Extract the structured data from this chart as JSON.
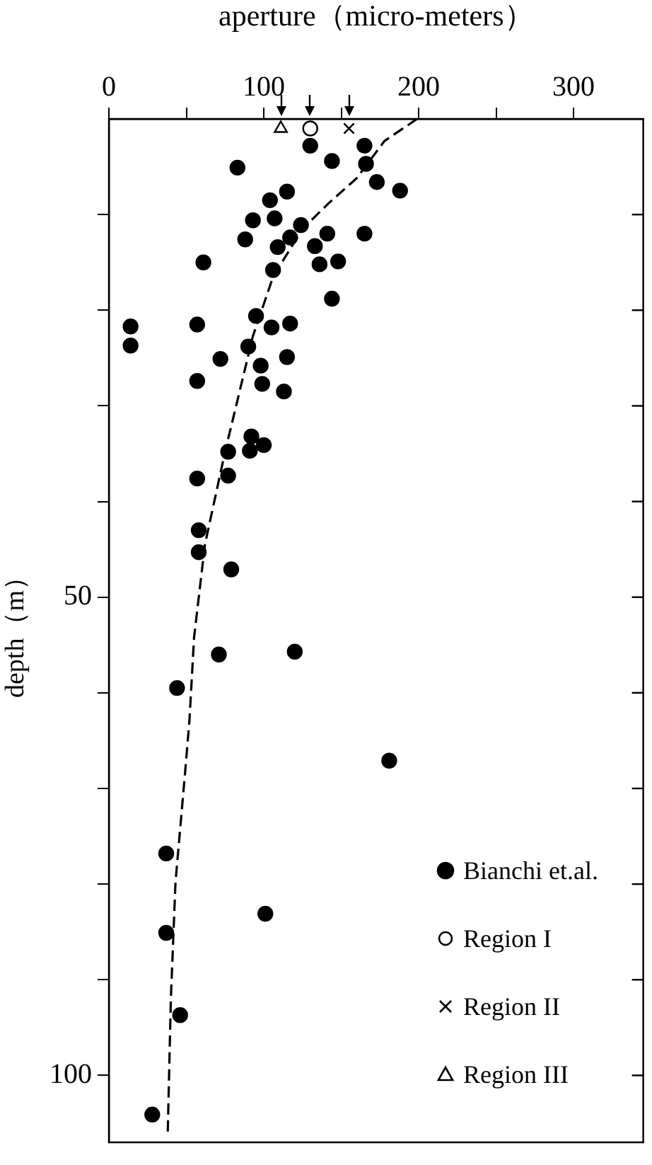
{
  "chart_data": {
    "type": "scatter",
    "xlabel": "aperture（micro-meters）",
    "ylabel": "depth（m）",
    "xlim": [
      0,
      345
    ],
    "ylim": [
      107,
      0
    ],
    "xticks": [
      0,
      {
        "value": 50,
        "label": null
      },
      100,
      {
        "value": 150,
        "label": null
      },
      200,
      {
        "value": 250,
        "label": null
      },
      300
    ],
    "yticks": [
      {
        "value": 10,
        "label": null
      },
      {
        "value": 20,
        "label": null
      },
      {
        "value": 30,
        "label": null
      },
      {
        "value": 40,
        "label": null
      },
      50,
      {
        "value": 60,
        "label": null
      },
      {
        "value": 70,
        "label": null
      },
      {
        "value": 80,
        "label": null
      },
      {
        "value": 90,
        "label": null
      },
      100
    ],
    "grid": false,
    "legend": "bottom right",
    "series": [
      {
        "name": "Bianchi et.al.",
        "marker": "circle",
        "color": "#000000",
        "x": [
          130,
          165,
          144,
          166,
          83,
          173,
          188,
          115,
          104,
          93,
          107,
          124,
          165,
          88,
          117,
          141,
          109,
          133,
          61,
          136,
          148,
          106,
          144,
          95,
          57,
          105,
          117,
          14,
          14,
          90,
          72,
          115,
          98,
          57,
          99,
          113,
          92,
          100,
          77,
          91,
          57,
          77,
          58,
          58,
          79,
          71,
          120,
          44,
          181,
          37,
          101,
          37,
          46,
          28
        ],
        "values": [
          2.8,
          2.8,
          4.4,
          4.7,
          5.1,
          6.6,
          7.5,
          7.6,
          8.5,
          10.6,
          10.4,
          11.1,
          12.0,
          12.6,
          12.4,
          12.0,
          13.4,
          13.3,
          15.0,
          15.2,
          14.9,
          15.8,
          18.8,
          20.6,
          21.5,
          21.8,
          21.4,
          21.7,
          23.7,
          23.8,
          25.1,
          24.9,
          25.8,
          27.4,
          27.7,
          28.5,
          33.2,
          34.1,
          34.8,
          34.7,
          37.6,
          37.3,
          43.0,
          45.3,
          47.1,
          56.0,
          55.7,
          59.5,
          67.1,
          76.8,
          83.1,
          85.1,
          93.7,
          104.1
        ]
      },
      {
        "name": "Region I",
        "marker": "circle",
        "color": "#000000",
        "x": [
          130
        ],
        "values": [
          1
        ]
      },
      {
        "name": "Region II",
        "marker": "cross",
        "color": "#000000",
        "x": [
          155
        ],
        "values": [
          1
        ]
      },
      {
        "name": "Region III",
        "marker": "triangle",
        "color": "#000000",
        "x": [
          111
        ],
        "values": [
          1
        ]
      },
      {
        "type": "line",
        "line_style": "dashed",
        "marker": "none",
        "color": "#000000",
        "x": [
          199,
          178,
          160,
          142,
          125,
          106,
          93,
          75,
          62,
          55,
          52,
          49,
          43,
          40,
          38
        ],
        "values": [
          0,
          2.3,
          6.2,
          8.8,
          11.5,
          16.5,
          22.7,
          34.8,
          44.5,
          54.2,
          62.9,
          68.7,
          79.8,
          92,
          106
        ]
      }
    ]
  }
}
